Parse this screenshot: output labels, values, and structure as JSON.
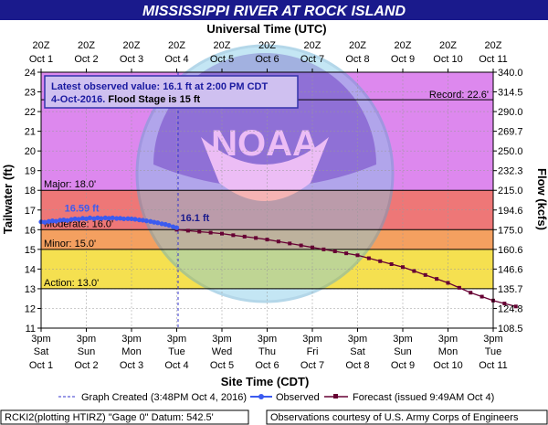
{
  "title": "MISSISSIPPI RIVER AT ROCK ISLAND",
  "top_axis_title": "Universal Time (UTC)",
  "bottom_axis_title": "Site Time (CDT)",
  "y_left_label": "Tailwater (ft)",
  "y_right_label": "Flow (kcfs)",
  "infobox": {
    "line1": "Latest observed value: 16.1 ft at 2:00 PM CDT",
    "line2_date": "4-Oct-2016.",
    "line2_rest": " Flood Stage is 15 ft"
  },
  "legend": {
    "created": "Graph Created (3:48PM Oct 4, 2016)",
    "observed": "Observed",
    "forecast": "Forecast (issued 9:49AM Oct 4)"
  },
  "footer": {
    "left": "RCKI2(plotting HTIRZ) \"Gage 0\" Datum: 542.5'",
    "right": "Observations courtesy of U.S. Army Corps of Engineers"
  },
  "watermark": "NOAA",
  "colors": {
    "title_bg": "#1a1a8c",
    "record": "#dd88ee",
    "major": "#ee7777",
    "moderate": "#f4a060",
    "minor": "#f5e050",
    "action": "#f7f7a0",
    "normal": "#ffffff",
    "observed": "#3b5bf0",
    "forecast": "#660033",
    "infobox_bg": "#cfc0f0",
    "infobox_border": "#3333aa"
  },
  "chart_data": {
    "type": "line",
    "x_days": [
      "Oct 1",
      "Oct 2",
      "Oct 3",
      "Oct 4",
      "Oct 5",
      "Oct 6",
      "Oct 7",
      "Oct 8",
      "Oct 9",
      "Oct 10",
      "Oct 11"
    ],
    "bottom_ticks": [
      {
        "time": "3pm",
        "day": "Sat",
        "date": "Oct 1"
      },
      {
        "time": "3pm",
        "day": "Sun",
        "date": "Oct 2"
      },
      {
        "time": "3pm",
        "day": "Mon",
        "date": "Oct 3"
      },
      {
        "time": "3pm",
        "day": "Tue",
        "date": "Oct 4"
      },
      {
        "time": "3pm",
        "day": "Wed",
        "date": "Oct 5"
      },
      {
        "time": "3pm",
        "day": "Thu",
        "date": "Oct 6"
      },
      {
        "time": "3pm",
        "day": "Fri",
        "date": "Oct 7"
      },
      {
        "time": "3pm",
        "day": "Sat",
        "date": "Oct 8"
      },
      {
        "time": "3pm",
        "day": "Sun",
        "date": "Oct 9"
      },
      {
        "time": "3pm",
        "day": "Mon",
        "date": "Oct 10"
      },
      {
        "time": "3pm",
        "day": "Tue",
        "date": "Oct 11"
      }
    ],
    "top_ticks": [
      {
        "time": "20Z",
        "date": "Oct 1"
      },
      {
        "time": "20Z",
        "date": "Oct 2"
      },
      {
        "time": "20Z",
        "date": "Oct 3"
      },
      {
        "time": "20Z",
        "date": "Oct 4"
      },
      {
        "time": "20Z",
        "date": "Oct 5"
      },
      {
        "time": "20Z",
        "date": "Oct 6"
      },
      {
        "time": "20Z",
        "date": "Oct 7"
      },
      {
        "time": "20Z",
        "date": "Oct 8"
      },
      {
        "time": "20Z",
        "date": "Oct 9"
      },
      {
        "time": "20Z",
        "date": "Oct 10"
      },
      {
        "time": "20Z",
        "date": "Oct 11"
      }
    ],
    "ylim": [
      11,
      24
    ],
    "y_ticks": [
      11,
      12,
      13,
      14,
      15,
      16,
      17,
      18,
      19,
      20,
      21,
      22,
      23,
      24
    ],
    "y2_ticks": [
      "108.5",
      "124.8",
      "135.7",
      "146.6",
      "160.6",
      "175.0",
      "194.6",
      "215.0",
      "232.3",
      "250.0",
      "269.7",
      "290.0",
      "314.5",
      "340.0"
    ],
    "stages": [
      {
        "name": "Record",
        "value": 22.6,
        "label": "Record: 22.6'"
      },
      {
        "name": "Major",
        "value": 18.0,
        "label": "Major: 18.0'"
      },
      {
        "name": "Moderate",
        "value": 16.0,
        "label": "Moderate: 16.0'"
      },
      {
        "name": "Minor",
        "value": 15.0,
        "label": "Minor: 15.0'"
      },
      {
        "name": "Action",
        "value": 13.0,
        "label": "Action: 13.0'"
      }
    ],
    "created_day": 3.03,
    "max_observed_label": "16.59 ft",
    "max_observed": {
      "day": 0.9,
      "value": 16.59
    },
    "latest_label": "16.1 ft",
    "latest_observed": {
      "day": 3.0,
      "value": 16.1
    },
    "observed": [
      [
        0.0,
        16.4
      ],
      [
        0.08,
        16.38
      ],
      [
        0.17,
        16.42
      ],
      [
        0.25,
        16.45
      ],
      [
        0.33,
        16.43
      ],
      [
        0.42,
        16.48
      ],
      [
        0.5,
        16.5
      ],
      [
        0.58,
        16.47
      ],
      [
        0.67,
        16.52
      ],
      [
        0.75,
        16.55
      ],
      [
        0.83,
        16.53
      ],
      [
        0.92,
        16.58
      ],
      [
        1.0,
        16.55
      ],
      [
        1.08,
        16.6
      ],
      [
        1.17,
        16.56
      ],
      [
        1.25,
        16.6
      ],
      [
        1.33,
        16.57
      ],
      [
        1.42,
        16.6
      ],
      [
        1.5,
        16.58
      ],
      [
        1.58,
        16.6
      ],
      [
        1.67,
        16.57
      ],
      [
        1.75,
        16.58
      ],
      [
        1.83,
        16.55
      ],
      [
        1.92,
        16.56
      ],
      [
        2.0,
        16.55
      ],
      [
        2.08,
        16.53
      ],
      [
        2.17,
        16.5
      ],
      [
        2.25,
        16.48
      ],
      [
        2.33,
        16.45
      ],
      [
        2.42,
        16.42
      ],
      [
        2.5,
        16.38
      ],
      [
        2.58,
        16.35
      ],
      [
        2.67,
        16.3
      ],
      [
        2.75,
        16.27
      ],
      [
        2.83,
        16.22
      ],
      [
        2.92,
        16.15
      ],
      [
        3.0,
        16.1
      ]
    ],
    "forecast": [
      [
        3.0,
        16.0
      ],
      [
        3.25,
        15.95
      ],
      [
        3.5,
        15.9
      ],
      [
        3.75,
        15.85
      ],
      [
        4.0,
        15.8
      ],
      [
        4.25,
        15.72
      ],
      [
        4.5,
        15.65
      ],
      [
        4.75,
        15.58
      ],
      [
        5.0,
        15.5
      ],
      [
        5.25,
        15.4
      ],
      [
        5.5,
        15.3
      ],
      [
        5.75,
        15.2
      ],
      [
        6.0,
        15.1
      ],
      [
        6.25,
        15.0
      ],
      [
        6.5,
        14.9
      ],
      [
        6.75,
        14.8
      ],
      [
        7.0,
        14.7
      ],
      [
        7.25,
        14.55
      ],
      [
        7.5,
        14.4
      ],
      [
        7.75,
        14.25
      ],
      [
        8.0,
        14.1
      ],
      [
        8.25,
        13.9
      ],
      [
        8.5,
        13.7
      ],
      [
        8.75,
        13.5
      ],
      [
        9.0,
        13.3
      ],
      [
        9.25,
        13.05
      ],
      [
        9.5,
        12.8
      ],
      [
        9.75,
        12.6
      ],
      [
        10.0,
        12.4
      ],
      [
        10.25,
        12.25
      ],
      [
        10.5,
        12.1
      ]
    ]
  }
}
